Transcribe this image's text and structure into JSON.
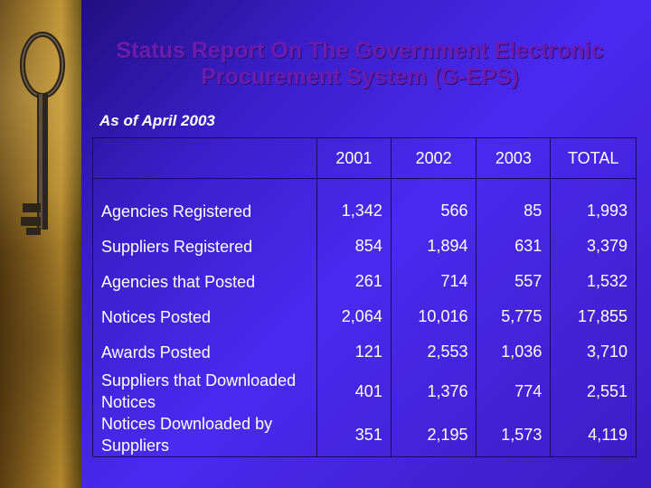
{
  "title_line1": "Status Report On The Government Electronic",
  "title_line2": "Procurement System (G-EPS)",
  "subtitle": "As of April 2003",
  "colors": {
    "background": "#3a1ec8",
    "title": "#6b1bb0",
    "text": "#ffffff"
  },
  "decorative_image": "antique-key-icon",
  "table": {
    "headers": [
      "",
      "2001",
      "2002",
      "2003",
      "TOTAL"
    ],
    "rows": [
      {
        "label": "Agencies Registered",
        "values": [
          "1,342",
          "566",
          "85",
          "1,993"
        ]
      },
      {
        "label": "Suppliers Registered",
        "values": [
          "854",
          "1,894",
          "631",
          "3,379"
        ]
      },
      {
        "label": "Agencies that Posted",
        "values": [
          "261",
          "714",
          "557",
          "1,532"
        ]
      },
      {
        "label": "Notices Posted",
        "values": [
          "2,064",
          "10,016",
          "5,775",
          "17,855"
        ]
      },
      {
        "label": "Awards Posted",
        "values": [
          "121",
          "2,553",
          "1,036",
          "3,710"
        ]
      },
      {
        "label": "Suppliers that Downloaded Notices",
        "values": [
          "401",
          "1,376",
          "774",
          "2,551"
        ]
      },
      {
        "label": "Notices Downloaded by Suppliers",
        "values": [
          "351",
          "2,195",
          "1,573",
          "4,119"
        ]
      }
    ]
  }
}
